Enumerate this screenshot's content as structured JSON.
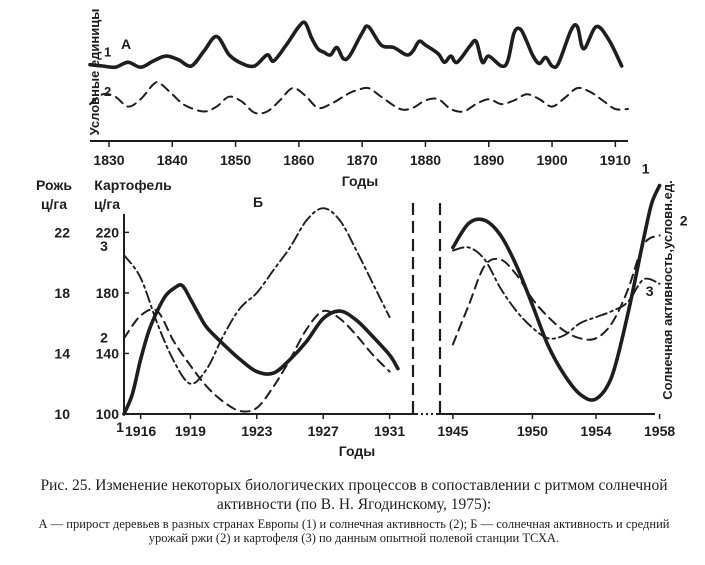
{
  "chart_data": [
    {
      "type": "line",
      "panel_label": "А",
      "ylabel": "Условные единицы",
      "xlabel": "Годы",
      "x_ticks": [
        1830,
        1840,
        1850,
        1860,
        1870,
        1880,
        1890,
        1900,
        1910
      ],
      "xlim": [
        1827,
        1912
      ],
      "ylim": [
        0,
        10
      ],
      "series": [
        {
          "name": "1",
          "style": "solid-thick",
          "points": [
            [
              1827,
              6.2
            ],
            [
              1829,
              6.1
            ],
            [
              1831,
              6.0
            ],
            [
              1833,
              6.4
            ],
            [
              1835,
              6.0
            ],
            [
              1837,
              6.5
            ],
            [
              1839,
              6.9
            ],
            [
              1841,
              6.6
            ],
            [
              1843,
              6.1
            ],
            [
              1845,
              7.3
            ],
            [
              1847,
              8.5
            ],
            [
              1849,
              7.0
            ],
            [
              1851,
              6.3
            ],
            [
              1853,
              6.1
            ],
            [
              1855,
              7.0
            ],
            [
              1856,
              6.5
            ],
            [
              1858,
              7.8
            ],
            [
              1860,
              9.3
            ],
            [
              1861,
              9.6
            ],
            [
              1862,
              8.4
            ],
            [
              1863,
              7.5
            ],
            [
              1864,
              7.2
            ],
            [
              1865,
              7.0
            ],
            [
              1866,
              7.6
            ],
            [
              1867,
              6.7
            ],
            [
              1868,
              6.9
            ],
            [
              1870,
              8.8
            ],
            [
              1871,
              9.3
            ],
            [
              1873,
              7.8
            ],
            [
              1875,
              7.6
            ],
            [
              1877,
              7.0
            ],
            [
              1878,
              7.3
            ],
            [
              1879,
              8.1
            ],
            [
              1880,
              7.8
            ],
            [
              1882,
              7.1
            ],
            [
              1883,
              6.4
            ],
            [
              1884,
              6.9
            ],
            [
              1885,
              6.4
            ],
            [
              1887,
              7.7
            ],
            [
              1888,
              8.1
            ],
            [
              1889,
              6.4
            ],
            [
              1890,
              6.9
            ],
            [
              1892,
              6.1
            ],
            [
              1893,
              6.5
            ],
            [
              1894,
              8.8
            ],
            [
              1895,
              9.1
            ],
            [
              1896,
              8.1
            ],
            [
              1897,
              6.9
            ],
            [
              1898,
              6.3
            ],
            [
              1899,
              6.8
            ],
            [
              1900,
              6.1
            ],
            [
              1901,
              6.3
            ],
            [
              1903,
              9.0
            ],
            [
              1904,
              9.3
            ],
            [
              1905,
              7.5
            ],
            [
              1907,
              9.3
            ],
            [
              1909,
              8.2
            ],
            [
              1911,
              6.1
            ]
          ]
        },
        {
          "name": "2",
          "style": "dashed",
          "points": [
            [
              1827,
              3.0
            ],
            [
              1829,
              3.8
            ],
            [
              1831,
              3.6
            ],
            [
              1833,
              2.8
            ],
            [
              1835,
              3.4
            ],
            [
              1837,
              4.6
            ],
            [
              1838,
              4.7
            ],
            [
              1840,
              3.8
            ],
            [
              1842,
              2.9
            ],
            [
              1845,
              2.4
            ],
            [
              1847,
              2.8
            ],
            [
              1849,
              3.6
            ],
            [
              1851,
              3.2
            ],
            [
              1853,
              2.3
            ],
            [
              1855,
              2.4
            ],
            [
              1857,
              3.3
            ],
            [
              1859,
              4.3
            ],
            [
              1861,
              3.7
            ],
            [
              1863,
              2.7
            ],
            [
              1865,
              3.0
            ],
            [
              1867,
              3.6
            ],
            [
              1868,
              3.9
            ],
            [
              1869,
              4.1
            ],
            [
              1871,
              4.3
            ],
            [
              1873,
              3.6
            ],
            [
              1876,
              2.6
            ],
            [
              1878,
              2.7
            ],
            [
              1880,
              3.3
            ],
            [
              1882,
              3.4
            ],
            [
              1884,
              2.6
            ],
            [
              1886,
              2.4
            ],
            [
              1888,
              3.0
            ],
            [
              1890,
              3.4
            ],
            [
              1892,
              3.0
            ],
            [
              1894,
              3.3
            ],
            [
              1896,
              3.8
            ],
            [
              1898,
              3.4
            ],
            [
              1900,
              2.8
            ],
            [
              1902,
              3.5
            ],
            [
              1904,
              4.3
            ],
            [
              1906,
              4.0
            ],
            [
              1908,
              3.3
            ],
            [
              1910,
              2.6
            ],
            [
              1912,
              2.6
            ]
          ]
        }
      ]
    },
    {
      "type": "line",
      "panel_label": "Б",
      "xlabel": "Годы",
      "ylabel_left_1": "Рожь",
      "ylabel_left_1_unit": "ц/га",
      "ylabel_left_2": "Картофель",
      "ylabel_left_2_unit": "ц/га",
      "ylabel_right": "Солнечная активность,условн.ед.",
      "x_ticks_left": [
        1916,
        1919,
        1923,
        1927,
        1931
      ],
      "x_ticks_right": [
        1945,
        1950,
        1954,
        1958
      ],
      "rye_ticks": [
        10,
        14,
        18,
        22
      ],
      "potato_ticks": [
        100,
        140,
        180,
        220
      ],
      "ylim_rye": [
        10,
        24.8
      ],
      "ylim_potato": [
        100,
        248
      ],
      "axis_break": "1932-1944",
      "series": [
        {
          "name": "1",
          "style": "solid-thick",
          "segments": [
            [
              [
                1915.0,
                10.0
              ],
              [
                1915.5,
                11.3
              ],
              [
                1916.0,
                13.6
              ],
              [
                1916.5,
                15.5
              ],
              [
                1917.0,
                16.8
              ],
              [
                1917.5,
                17.8
              ],
              [
                1918.0,
                18.3
              ],
              [
                1918.5,
                18.5
              ],
              [
                1919.0,
                17.6
              ],
              [
                1919.5,
                16.6
              ],
              [
                1920.0,
                15.7
              ],
              [
                1921.0,
                14.6
              ],
              [
                1922.0,
                13.6
              ],
              [
                1923.0,
                12.8
              ],
              [
                1924.0,
                12.7
              ],
              [
                1925.0,
                13.6
              ],
              [
                1926.0,
                14.8
              ],
              [
                1927.0,
                16.3
              ],
              [
                1928.0,
                16.8
              ],
              [
                1929.0,
                16.2
              ],
              [
                1930.0,
                15.1
              ],
              [
                1931.0,
                13.9
              ],
              [
                1931.5,
                13.0
              ]
            ],
            [
              [
                1945.0,
                21.0
              ],
              [
                1946.0,
                22.6
              ],
              [
                1947.0,
                22.8
              ],
              [
                1948.0,
                21.8
              ],
              [
                1949.0,
                19.8
              ],
              [
                1950.0,
                17.2
              ],
              [
                1951.0,
                14.5
              ],
              [
                1952.0,
                12.6
              ],
              [
                1953.0,
                11.3
              ],
              [
                1954.0,
                11.0
              ],
              [
                1955.0,
                12.5
              ],
              [
                1956.0,
                16.6
              ],
              [
                1957.0,
                21.6
              ],
              [
                1957.5,
                23.9
              ],
              [
                1958.0,
                25.1
              ]
            ]
          ]
        },
        {
          "name": "2",
          "style": "dashed",
          "segments": [
            [
              [
                1915.0,
                15.0
              ],
              [
                1916.0,
                16.5
              ],
              [
                1917.0,
                16.8
              ],
              [
                1918.0,
                14.8
              ],
              [
                1919.0,
                13.2
              ],
              [
                1920.0,
                11.8
              ],
              [
                1921.0,
                10.8
              ],
              [
                1922.0,
                10.2
              ],
              [
                1923.0,
                10.4
              ],
              [
                1924.0,
                11.8
              ],
              [
                1925.0,
                13.6
              ],
              [
                1926.0,
                15.6
              ],
              [
                1927.0,
                16.8
              ],
              [
                1928.0,
                16.3
              ],
              [
                1929.0,
                15.2
              ],
              [
                1930.0,
                13.9
              ],
              [
                1931.0,
                12.8
              ]
            ],
            [
              [
                1945.0,
                14.6
              ],
              [
                1946.0,
                17.2
              ],
              [
                1947.0,
                19.8
              ],
              [
                1948.0,
                20.2
              ],
              [
                1949.0,
                19.2
              ],
              [
                1950.0,
                17.6
              ],
              [
                1951.0,
                16.4
              ],
              [
                1952.0,
                15.5
              ],
              [
                1953.0,
                15.0
              ],
              [
                1954.0,
                15.0
              ],
              [
                1955.0,
                16.0
              ],
              [
                1956.0,
                18.2
              ],
              [
                1957.0,
                21.2
              ],
              [
                1958.0,
                21.8
              ]
            ]
          ]
        },
        {
          "name": "3",
          "style": "dash-dot",
          "segments": [
            [
              [
                1915.0,
                20.5
              ],
              [
                1916.0,
                19.0
              ],
              [
                1917.0,
                16.0
              ],
              [
                1918.0,
                13.5
              ],
              [
                1919.0,
                12.0
              ],
              [
                1920.0,
                13.0
              ],
              [
                1921.0,
                15.2
              ],
              [
                1922.0,
                17.0
              ],
              [
                1923.0,
                18.0
              ],
              [
                1924.0,
                19.5
              ],
              [
                1925.0,
                21.0
              ],
              [
                1926.0,
                22.8
              ],
              [
                1927.0,
                23.6
              ],
              [
                1928.0,
                22.8
              ],
              [
                1929.0,
                20.8
              ],
              [
                1930.0,
                18.6
              ],
              [
                1931.0,
                16.4
              ]
            ],
            [
              [
                1945.0,
                20.8
              ],
              [
                1946.0,
                21.0
              ],
              [
                1947.0,
                20.2
              ],
              [
                1948.0,
                18.3
              ],
              [
                1949.0,
                16.8
              ],
              [
                1950.0,
                15.7
              ],
              [
                1951.0,
                15.0
              ],
              [
                1952.0,
                15.2
              ],
              [
                1953.0,
                16.0
              ],
              [
                1954.0,
                16.4
              ],
              [
                1955.0,
                16.8
              ],
              [
                1956.0,
                17.4
              ],
              [
                1957.0,
                18.9
              ],
              [
                1958.0,
                18.6
              ]
            ]
          ]
        }
      ]
    }
  ],
  "caption": {
    "title": "Рис. 25. Изменение некоторых биологических процессов в сопоставлении с ритмом солнечной активности (по В. Н. Ягодинскому, 1975):",
    "subtitle": "А — прирост деревьев в разных странах Европы (1) и солнечная активность (2); Б — солнечная активность и средний урожай ржи (2) и картофеля (3) по данным опытной полевой станции ТСХА."
  }
}
